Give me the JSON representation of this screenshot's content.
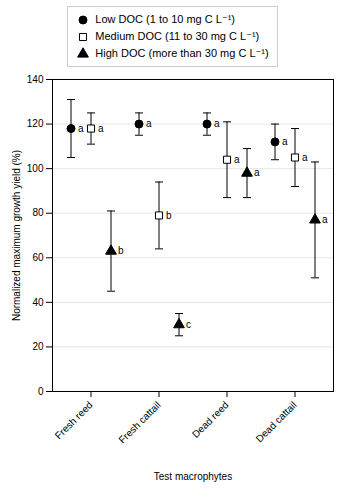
{
  "chart_data": {
    "type": "scatter",
    "categories": [
      "Fresh reed",
      "Fresh cattail",
      "Dead reed",
      "Dead cattail"
    ],
    "series": [
      {
        "name": "Low DOC (1 to 10 mg C L⁻¹)",
        "color": "black",
        "marker": "circle",
        "values": [
          118,
          120,
          120,
          112
        ],
        "errors": [
          13,
          5,
          5,
          8
        ],
        "labels": [
          "a",
          "a",
          "a",
          "a"
        ]
      },
      {
        "name": "Medium DOC (11 to 30 mg C L⁻¹)",
        "color": "black",
        "marker": "square-open",
        "values": [
          118,
          79,
          104,
          105
        ],
        "errors": [
          7,
          15,
          17,
          13
        ],
        "labels": [
          "a",
          "b",
          "a",
          "a"
        ]
      },
      {
        "name": "High DOC (more than 30 mg C L⁻¹)",
        "color": "black",
        "marker": "triangle",
        "values": [
          63,
          30,
          98,
          77
        ],
        "errors": [
          18,
          5,
          11,
          26
        ],
        "labels": [
          "b",
          "c",
          "a",
          "a"
        ]
      }
    ],
    "xlabel": "Test macrophytes",
    "ylabel": "Normalized maximum growth yield (%)",
    "ylim": [
      0,
      140
    ],
    "yticks": [
      0,
      20,
      40,
      60,
      80,
      100,
      120,
      140
    ],
    "grid": true,
    "legend": "top"
  }
}
